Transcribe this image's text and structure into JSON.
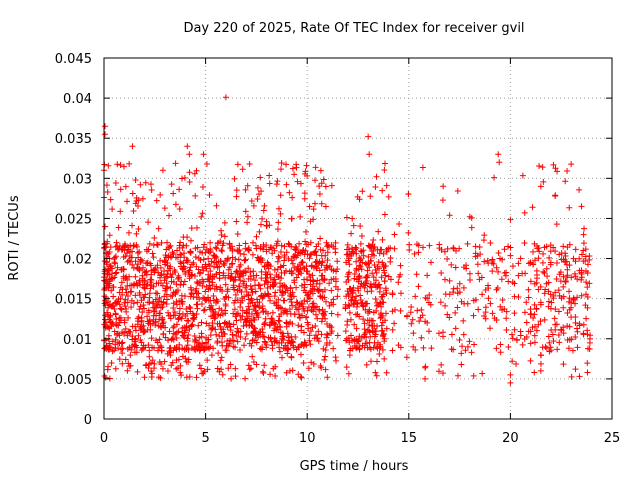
{
  "chart_data": {
    "type": "scatter",
    "title": "Day 220 of 2025, Rate Of TEC Index for receiver gvil",
    "xlabel": "GPS time / hours",
    "ylabel": "ROTI / TECUs",
    "xlim": [
      0,
      25
    ],
    "ylim": [
      0,
      0.045
    ],
    "x_ticks": [
      0,
      5,
      10,
      15,
      20,
      25
    ],
    "x_tick_labels": [
      "0",
      "5",
      "10",
      "15",
      "20",
      "25"
    ],
    "y_ticks": [
      0,
      0.005,
      0.01,
      0.015,
      0.02,
      0.025,
      0.03,
      0.035,
      0.04,
      0.045
    ],
    "y_tick_labels": [
      "0",
      "0.005",
      "0.01",
      "0.015",
      "0.02",
      "0.025",
      "0.03",
      "0.035",
      "0.04",
      "0.045"
    ],
    "grid": true,
    "marker": "+",
    "marker_color": "#ff0000",
    "series": [
      {
        "x": [
          0.0,
          0.03,
          0.05,
          0.08,
          0.1,
          0.12,
          0.15,
          0.18,
          0.2,
          0.22,
          0.25,
          0.28,
          0.3,
          0.35,
          0.4,
          0.45,
          0.5,
          0.55,
          0.6,
          0.65,
          0.7,
          0.75,
          0.8,
          0.85,
          0.9,
          0.95,
          1.0,
          1.05,
          1.1,
          1.15,
          1.2,
          1.25,
          1.3,
          1.35,
          1.4,
          1.45,
          1.5,
          1.55,
          1.6,
          1.65,
          1.7,
          1.75,
          1.8,
          1.85,
          1.9,
          1.95,
          2.0,
          2.05,
          2.1,
          2.15,
          2.2,
          2.25,
          2.3,
          2.35,
          2.4,
          2.45,
          2.5,
          2.55,
          2.6,
          2.65,
          2.7,
          2.75,
          2.8,
          2.85,
          2.9,
          2.95,
          3.0,
          3.05,
          3.1,
          3.15,
          3.2,
          3.25,
          3.3,
          3.35,
          3.4,
          3.45,
          3.5,
          3.55,
          3.6,
          3.65,
          3.7,
          3.75,
          3.8,
          3.85,
          3.9,
          3.95,
          4.0,
          4.05,
          4.1,
          4.15,
          4.2,
          4.25,
          4.3,
          4.35,
          4.4,
          4.45,
          4.5,
          4.55,
          4.6,
          4.65,
          4.7,
          4.75,
          4.8,
          4.85,
          4.9,
          4.95,
          5.0,
          5.05,
          5.1,
          5.15,
          5.2,
          5.25,
          5.3,
          5.35,
          5.4,
          5.45,
          5.5,
          5.55,
          5.6,
          5.65,
          5.7,
          5.75,
          5.8,
          5.85,
          5.9,
          5.95,
          6.0,
          6.05,
          6.1,
          6.15,
          6.2,
          6.25,
          6.3,
          6.35,
          6.4,
          6.45,
          6.5,
          6.55,
          6.6,
          6.65,
          6.7,
          6.75,
          6.8,
          6.85,
          6.9,
          6.95,
          7.0,
          7.05,
          7.1,
          7.15,
          7.2,
          7.25,
          7.3,
          7.35,
          7.4,
          7.45,
          7.5,
          7.55,
          7.6,
          7.65,
          7.7,
          7.75,
          7.8,
          7.85,
          7.9,
          7.95,
          8.0,
          8.05,
          8.1,
          8.15,
          8.2,
          8.25,
          8.3,
          8.35,
          8.4,
          8.45,
          8.5,
          8.55,
          8.6,
          8.65,
          8.7,
          8.75,
          8.8,
          8.85,
          8.9,
          8.95,
          9.0,
          9.05,
          9.1,
          9.15,
          9.2,
          9.25,
          9.3,
          9.35,
          9.4,
          9.45,
          9.5,
          9.55,
          9.6,
          9.65,
          9.7,
          9.75,
          9.8,
          9.85,
          9.9,
          9.95,
          10.0,
          10.05,
          10.1,
          10.15,
          10.2,
          10.25,
          10.3,
          10.35,
          10.4,
          10.45,
          10.5,
          10.55,
          10.6,
          10.65,
          10.7,
          10.75,
          10.8,
          10.85,
          10.9,
          10.95,
          11.0,
          11.1,
          11.2,
          11.3,
          11.4,
          11.5,
          11.9,
          11.95,
          12.0,
          12.05,
          12.1,
          12.15,
          12.2,
          12.25,
          12.3,
          12.35,
          12.4,
          12.45,
          12.5,
          12.55,
          12.6,
          12.65,
          12.7,
          12.75,
          12.8,
          12.85,
          12.9,
          12.95,
          13.0,
          13.05,
          13.1,
          13.15,
          13.2,
          13.25,
          13.3,
          13.35,
          13.4,
          13.45,
          13.5,
          13.55,
          13.6,
          13.65,
          13.7,
          13.75,
          13.8,
          13.85,
          13.9,
          14.0,
          14.1,
          14.2,
          14.3,
          14.5,
          14.6,
          14.9,
          15.0,
          15.1,
          15.2,
          15.3,
          15.4,
          15.5,
          15.6,
          15.7,
          15.8,
          15.9,
          16.0,
          16.1,
          16.5,
          16.6,
          16.7,
          16.8,
          16.9,
          17.0,
          17.1,
          17.2,
          17.3,
          17.4,
          17.5,
          17.6,
          17.7,
          17.8,
          17.9,
          18.0,
          18.1,
          18.2,
          18.3,
          18.4,
          18.5,
          18.6,
          18.7,
          18.8,
          18.9,
          19.0,
          19.1,
          19.2,
          19.3,
          19.4,
          19.5,
          19.6,
          19.7,
          19.8,
          19.9,
          20.0,
          20.1,
          20.2,
          20.3,
          20.4,
          20.5,
          20.6,
          20.7,
          20.8,
          20.9,
          21.0,
          21.1,
          21.2,
          21.3,
          21.4,
          21.5,
          21.6,
          21.7,
          21.8,
          21.9,
          22.0,
          22.1,
          22.2,
          22.3,
          22.4,
          22.5,
          22.6,
          22.7,
          22.8,
          22.9,
          23.0,
          23.1,
          23.2,
          23.3,
          23.4,
          23.5,
          23.6,
          23.7,
          23.8,
          23.9
        ],
        "y_range_hint": "dense band 0.008–0.022 with outliers up to 0.04"
      }
    ]
  }
}
